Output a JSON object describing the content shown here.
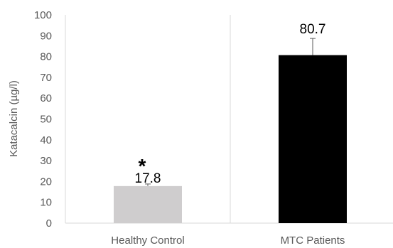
{
  "chart_data": {
    "type": "bar",
    "categories": [
      "Healthy Control",
      "MTC Patients"
    ],
    "values": [
      17.8,
      80.7
    ],
    "data_labels": [
      "17.8",
      "80.7"
    ],
    "error_upper": [
      1.0,
      8.0
    ],
    "significance": [
      "*",
      ""
    ],
    "bar_colors": [
      "#cfcdce",
      "#000000"
    ],
    "xlabel": "",
    "ylabel": "Katacalcin (µg/l)",
    "ylim": [
      0,
      100
    ],
    "yticks": [
      0,
      10,
      20,
      30,
      40,
      50,
      60,
      70,
      80,
      90,
      100
    ],
    "grid": "vertical category separators",
    "legend": "none"
  }
}
